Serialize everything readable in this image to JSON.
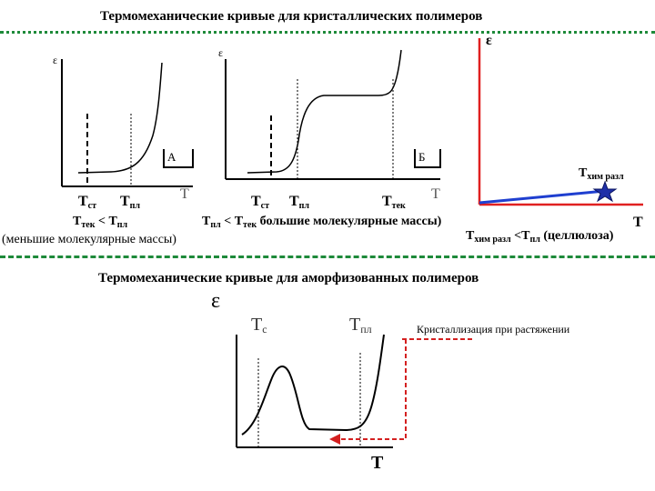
{
  "section1": {
    "title": "Термомеханические кривые для кристаллических полимеров"
  },
  "panelA": {
    "axis_y": "ε",
    "axis_x": "T",
    "box_label": "А",
    "tc_label": "Т",
    "tc_sub": "ст",
    "tm_label": "Т",
    "tm_sub": "пл",
    "relation_main": "Т",
    "relation_sub1": "тек",
    "relation_mid": " < Т",
    "relation_sub2": "пл",
    "note": "(меньшие молекулярные массы)"
  },
  "panelB": {
    "axis_y": "ε",
    "axis_x": "T",
    "box_label": "Б",
    "tc_label": "Т",
    "tc_sub": "ст",
    "tm_label": "Т",
    "tm_sub": "пл",
    "tf_label": "Т",
    "tf_sub": "тек",
    "relation_main": "Т",
    "relation_sub1": "пл",
    "relation_mid": " < Т",
    "relation_sub2": "тек",
    "note": " большие молекулярные массы)"
  },
  "panelC": {
    "axis_y": "ε",
    "axis_x": "T",
    "tdec_label": "Т",
    "tdec_sub": "хим разл",
    "relation_main": "Т",
    "relation_sub1": "хим разл",
    "relation_mid": " <Т",
    "relation_sub2": "пл",
    "note": " (целлюлоза)",
    "colors": {
      "axis": "#e02020",
      "line": "#1f3fd0",
      "star": "#1f2fa8"
    }
  },
  "section2": {
    "title": "Термомеханические кривые для аморфизованных полимеров"
  },
  "panelD": {
    "axis_y": "ε",
    "axis_x": "T",
    "tc_label": "Т",
    "tc_sub": "с",
    "tm_label": "Т",
    "tm_sub": "пл",
    "callout": "Кристаллизация при растяжении",
    "colors": {
      "callout": "#d42020"
    }
  },
  "colors": {
    "separator": "#1e8a3a"
  }
}
